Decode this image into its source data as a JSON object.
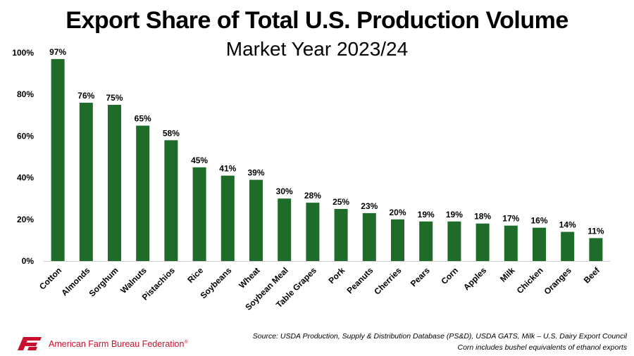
{
  "chart_data": {
    "type": "bar",
    "title": "Export Share of Total U.S. Production Volume",
    "subtitle": "Market Year 2023/24",
    "categories": [
      "Cotton",
      "Almonds",
      "Sorghum",
      "Walnuts",
      "Pistachios",
      "Rice",
      "Soybeans",
      "Wheat",
      "Soybean Meal",
      "Table Grapes",
      "Pork",
      "Peanuts",
      "Cherries",
      "Pears",
      "Corn",
      "Apples",
      "Milk",
      "Chicken",
      "Oranges",
      "Beef"
    ],
    "values": [
      97,
      76,
      75,
      65,
      58,
      45,
      41,
      39,
      30,
      28,
      25,
      23,
      20,
      19,
      19,
      18,
      17,
      16,
      14,
      11
    ],
    "data_labels": [
      "97%",
      "76%",
      "75%",
      "65%",
      "58%",
      "45%",
      "41%",
      "39%",
      "30%",
      "28%",
      "25%",
      "23%",
      "20%",
      "19%",
      "19%",
      "18%",
      "17%",
      "16%",
      "14%",
      "11%"
    ],
    "yticks": [
      0,
      20,
      40,
      60,
      80,
      100
    ],
    "ytick_labels": [
      "0%",
      "20%",
      "40%",
      "60%",
      "80%",
      "100%"
    ],
    "ylim": [
      0,
      100
    ],
    "xlabel": "",
    "ylabel": "",
    "grid": false,
    "bar_color": "#1e6b2a"
  },
  "footer": {
    "org_name": "American Farm Bureau Federation",
    "org_mark": "®",
    "source_line1": "Source: USDA Production, Supply & Distribution Database (PS&D), USDA GATS, Milk – U.S. Dairy Export Council",
    "source_line2": "Corn includes bushel equivalents of ethanol exports",
    "logo_icon": "afbf-logo-icon",
    "logo_color": "#c8102e"
  }
}
